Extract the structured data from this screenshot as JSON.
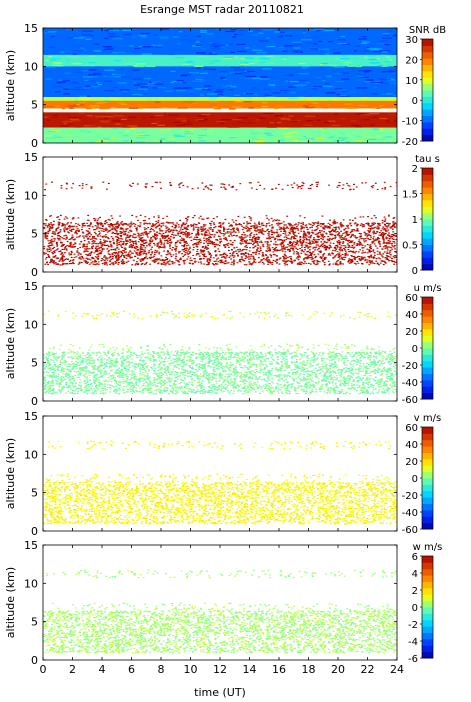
{
  "title": "Esrange MST radar 20110821",
  "xlabel": "time (UT)",
  "chart_data": [
    {
      "type": "heatmap",
      "ylabel": "altitude (km)",
      "colorbar_label": "SNR dB",
      "xlim": [
        0,
        24
      ],
      "ylim": [
        0,
        15
      ],
      "xticks": [
        0,
        2,
        4,
        6,
        8,
        10,
        12,
        14,
        16,
        18,
        20,
        22,
        24
      ],
      "yticks": [
        0,
        5,
        10,
        15
      ],
      "clim": [
        -20,
        30
      ],
      "cticks": [
        30,
        20,
        10,
        0,
        -10,
        -20
      ],
      "layers": [
        {
          "alt_range": [
            6.0,
            15.0
          ],
          "value": -10,
          "coverage": "full"
        },
        {
          "alt_range": [
            10.0,
            11.5
          ],
          "value": 2,
          "coverage": "full"
        },
        {
          "alt_range": [
            5.0,
            6.0
          ],
          "value": 8,
          "coverage": "full"
        },
        {
          "alt_range": [
            4.5,
            5.5
          ],
          "value": 20,
          "coverage": "full"
        },
        {
          "alt_range": [
            2.0,
            4.0
          ],
          "value": 28,
          "coverage": "full"
        },
        {
          "alt_range": [
            0.0,
            2.0
          ],
          "value": 5,
          "coverage": "full"
        }
      ]
    },
    {
      "type": "heatmap",
      "ylabel": "altitude (km)",
      "colorbar_label": "tau s",
      "xlim": [
        0,
        24
      ],
      "ylim": [
        0,
        15
      ],
      "xticks": [
        0,
        2,
        4,
        6,
        8,
        10,
        12,
        14,
        16,
        18,
        20,
        22,
        24
      ],
      "yticks": [
        0,
        5,
        10,
        15
      ],
      "clim": [
        0,
        2
      ],
      "cticks": [
        2,
        1.5,
        1,
        0.5,
        0
      ],
      "layers": [
        {
          "alt_range": [
            10.8,
            11.8
          ],
          "value": 1.95,
          "coverage": "sparse"
        },
        {
          "alt_range": [
            1.0,
            6.5
          ],
          "value": 1.95,
          "coverage": "dense"
        },
        {
          "alt_range": [
            6.5,
            7.5
          ],
          "value": 1.95,
          "coverage": "sparse"
        }
      ]
    },
    {
      "type": "heatmap",
      "ylabel": "altitude (km)",
      "colorbar_label": "u m/s",
      "xlim": [
        0,
        24
      ],
      "ylim": [
        0,
        15
      ],
      "xticks": [
        0,
        2,
        4,
        6,
        8,
        10,
        12,
        14,
        16,
        18,
        20,
        22,
        24
      ],
      "yticks": [
        0,
        5,
        10,
        15
      ],
      "clim": [
        -60,
        60
      ],
      "cticks": [
        60,
        40,
        20,
        0,
        -20,
        -40,
        -60
      ],
      "layers": [
        {
          "alt_range": [
            10.8,
            11.8
          ],
          "value": 10,
          "coverage": "sparse"
        },
        {
          "alt_range": [
            1.0,
            6.5
          ],
          "value": 0,
          "coverage": "dense"
        },
        {
          "alt_range": [
            6.5,
            7.5
          ],
          "value": 5,
          "coverage": "sparse"
        }
      ]
    },
    {
      "type": "heatmap",
      "ylabel": "altitude (km)",
      "colorbar_label": "v m/s",
      "xlim": [
        0,
        24
      ],
      "ylim": [
        0,
        15
      ],
      "xticks": [
        0,
        2,
        4,
        6,
        8,
        10,
        12,
        14,
        16,
        18,
        20,
        22,
        24
      ],
      "yticks": [
        0,
        5,
        10,
        15
      ],
      "clim": [
        -60,
        60
      ],
      "cticks": [
        60,
        40,
        20,
        0,
        -20,
        -40,
        -60
      ],
      "layers": [
        {
          "alt_range": [
            10.8,
            11.8
          ],
          "value": 15,
          "coverage": "sparse"
        },
        {
          "alt_range": [
            1.0,
            6.5
          ],
          "value": 15,
          "coverage": "dense"
        },
        {
          "alt_range": [
            6.5,
            7.5
          ],
          "value": 15,
          "coverage": "sparse"
        }
      ]
    },
    {
      "type": "heatmap",
      "ylabel": "altitude (km)",
      "colorbar_label": "w m/s",
      "xlim": [
        0,
        24
      ],
      "ylim": [
        0,
        15
      ],
      "xticks": [
        0,
        2,
        4,
        6,
        8,
        10,
        12,
        14,
        16,
        18,
        20,
        22,
        24
      ],
      "yticks": [
        0,
        5,
        10,
        15
      ],
      "clim": [
        -6,
        6
      ],
      "cticks": [
        6,
        4,
        2,
        0,
        -2,
        -4,
        -6
      ],
      "layers": [
        {
          "alt_range": [
            10.8,
            11.8
          ],
          "value": 0.5,
          "coverage": "sparse"
        },
        {
          "alt_range": [
            1.0,
            6.5
          ],
          "value": 0.5,
          "coverage": "dense"
        },
        {
          "alt_range": [
            6.5,
            7.5
          ],
          "value": 0.5,
          "coverage": "sparse"
        }
      ]
    }
  ]
}
